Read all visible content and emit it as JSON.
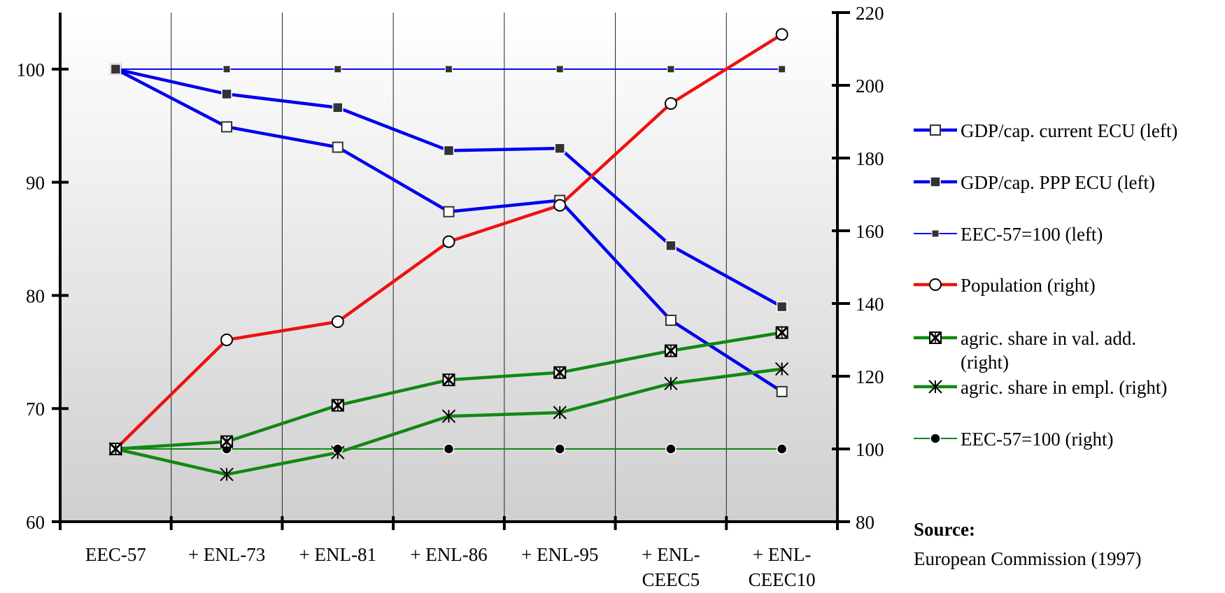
{
  "chart_data": {
    "type": "line",
    "categories": [
      [
        "EEC-57"
      ],
      [
        "+ ENL-73"
      ],
      [
        "+ ENL-81"
      ],
      [
        "+ ENL-86"
      ],
      [
        "+ ENL-95"
      ],
      [
        "+ ENL-",
        "CEEC5"
      ],
      [
        "+ ENL-",
        "CEEC10"
      ]
    ],
    "y_left": {
      "ylim": [
        60,
        105
      ],
      "ticks": [
        60,
        70,
        80,
        90,
        100
      ]
    },
    "y_right": {
      "ylim": [
        80,
        220
      ],
      "ticks": [
        80,
        100,
        120,
        140,
        160,
        180,
        200,
        220
      ]
    },
    "grid": "vertical category lines",
    "legend_position": "right",
    "series": [
      {
        "name": "GDP/cap. current ECU (left)",
        "axis": "left",
        "color": "#0000ee",
        "marker": "open-square",
        "thick": true,
        "values": [
          100,
          94.9,
          93.1,
          87.4,
          88.4,
          77.8,
          71.5
        ]
      },
      {
        "name": "GDP/cap. PPP ECU (left)",
        "axis": "left",
        "color": "#0000ee",
        "marker": "filled-square",
        "thick": true,
        "values": [
          100,
          97.8,
          96.6,
          92.8,
          93.0,
          84.4,
          79.0
        ]
      },
      {
        "name": "EEC-57=100 (left)",
        "axis": "left",
        "color": "#0000ee",
        "marker": "small-square",
        "thick": false,
        "values": [
          100,
          100,
          100,
          100,
          100,
          100,
          100
        ]
      },
      {
        "name": "Population (right)",
        "axis": "right",
        "color": "#ee1111",
        "marker": "open-circle",
        "thick": true,
        "values": [
          100,
          130,
          135,
          157,
          167,
          195,
          214
        ]
      },
      {
        "name": [
          "agric. share in val. add.",
          "(right)"
        ],
        "axis": "right",
        "color": "#118811",
        "marker": "x-square",
        "thick": true,
        "values": [
          100,
          102,
          112,
          119,
          121,
          127,
          132
        ]
      },
      {
        "name": "agric. share in empl. (right)",
        "axis": "right",
        "color": "#118811",
        "marker": "asterisk",
        "thick": true,
        "values": [
          100,
          93,
          99,
          109,
          110,
          118,
          122
        ]
      },
      {
        "name": "EEC-57=100 (right)",
        "axis": "right",
        "color": "#118811",
        "marker": "dot",
        "thick": false,
        "values": [
          100,
          100,
          100,
          100,
          100,
          100,
          100
        ]
      }
    ]
  },
  "source": {
    "title": "Source:",
    "text": "European Commission (1997)"
  }
}
